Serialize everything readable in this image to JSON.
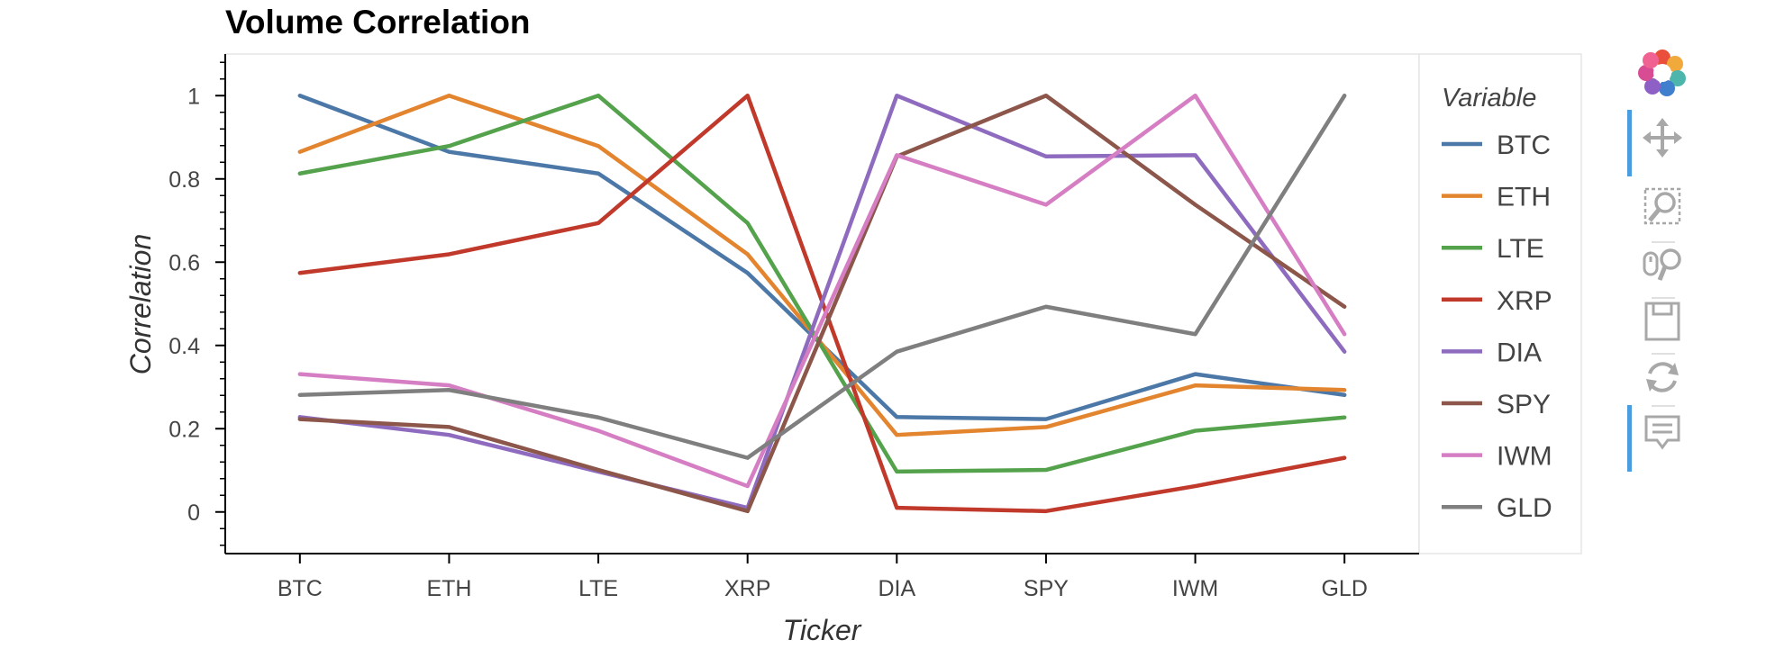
{
  "chart_data": {
    "type": "line",
    "title": "Volume Correlation",
    "xlabel": "Ticker",
    "ylabel": "Correlation",
    "categories": [
      "BTC",
      "ETH",
      "LTE",
      "XRP",
      "DIA",
      "SPY",
      "IWM",
      "GLD"
    ],
    "ylim": [
      -0.1,
      1.1
    ],
    "yticks": [
      "0",
      "0.2",
      "0.4",
      "0.6",
      "0.8",
      "1"
    ],
    "legend": {
      "title": "Variable",
      "position": "right"
    },
    "grid": false,
    "series": [
      {
        "name": "BTC",
        "color": "#4c78a8",
        "values": [
          1.0,
          0.865,
          0.813,
          0.574,
          0.228,
          0.223,
          0.331,
          0.281
        ]
      },
      {
        "name": "ETH",
        "color": "#e3842f",
        "values": [
          0.865,
          1.0,
          0.879,
          0.619,
          0.185,
          0.204,
          0.304,
          0.293
        ]
      },
      {
        "name": "LTE",
        "color": "#54a24b",
        "values": [
          0.813,
          0.879,
          1.0,
          0.694,
          0.097,
          0.101,
          0.195,
          0.227
        ]
      },
      {
        "name": "XRP",
        "color": "#c0392b",
        "values": [
          0.574,
          0.619,
          0.694,
          1.0,
          0.01,
          0.002,
          0.062,
          0.13
        ]
      },
      {
        "name": "DIA",
        "color": "#8e6bbf",
        "values": [
          0.228,
          0.185,
          0.097,
          0.01,
          1.0,
          0.854,
          0.857,
          0.385
        ]
      },
      {
        "name": "SPY",
        "color": "#8c564b",
        "values": [
          0.223,
          0.204,
          0.101,
          0.002,
          0.854,
          1.0,
          0.738,
          0.493
        ]
      },
      {
        "name": "IWM",
        "color": "#d67ec3",
        "values": [
          0.331,
          0.304,
          0.195,
          0.062,
          0.857,
          0.738,
          1.0,
          0.427
        ]
      },
      {
        "name": "GLD",
        "color": "#7f7f7f",
        "values": [
          0.281,
          0.293,
          0.227,
          0.13,
          0.385,
          0.493,
          0.427,
          1.0
        ]
      }
    ]
  },
  "toolbar": {
    "tools": [
      {
        "name": "bokeh-logo-icon",
        "active": false
      },
      {
        "name": "pan-tool-icon",
        "active": true
      },
      {
        "name": "box-zoom-tool-icon",
        "active": false
      },
      {
        "name": "wheel-zoom-tool-icon",
        "active": false
      },
      {
        "name": "save-tool-icon",
        "active": false
      },
      {
        "name": "reset-tool-icon",
        "active": false
      },
      {
        "name": "hover-tool-icon",
        "active": true
      }
    ]
  }
}
